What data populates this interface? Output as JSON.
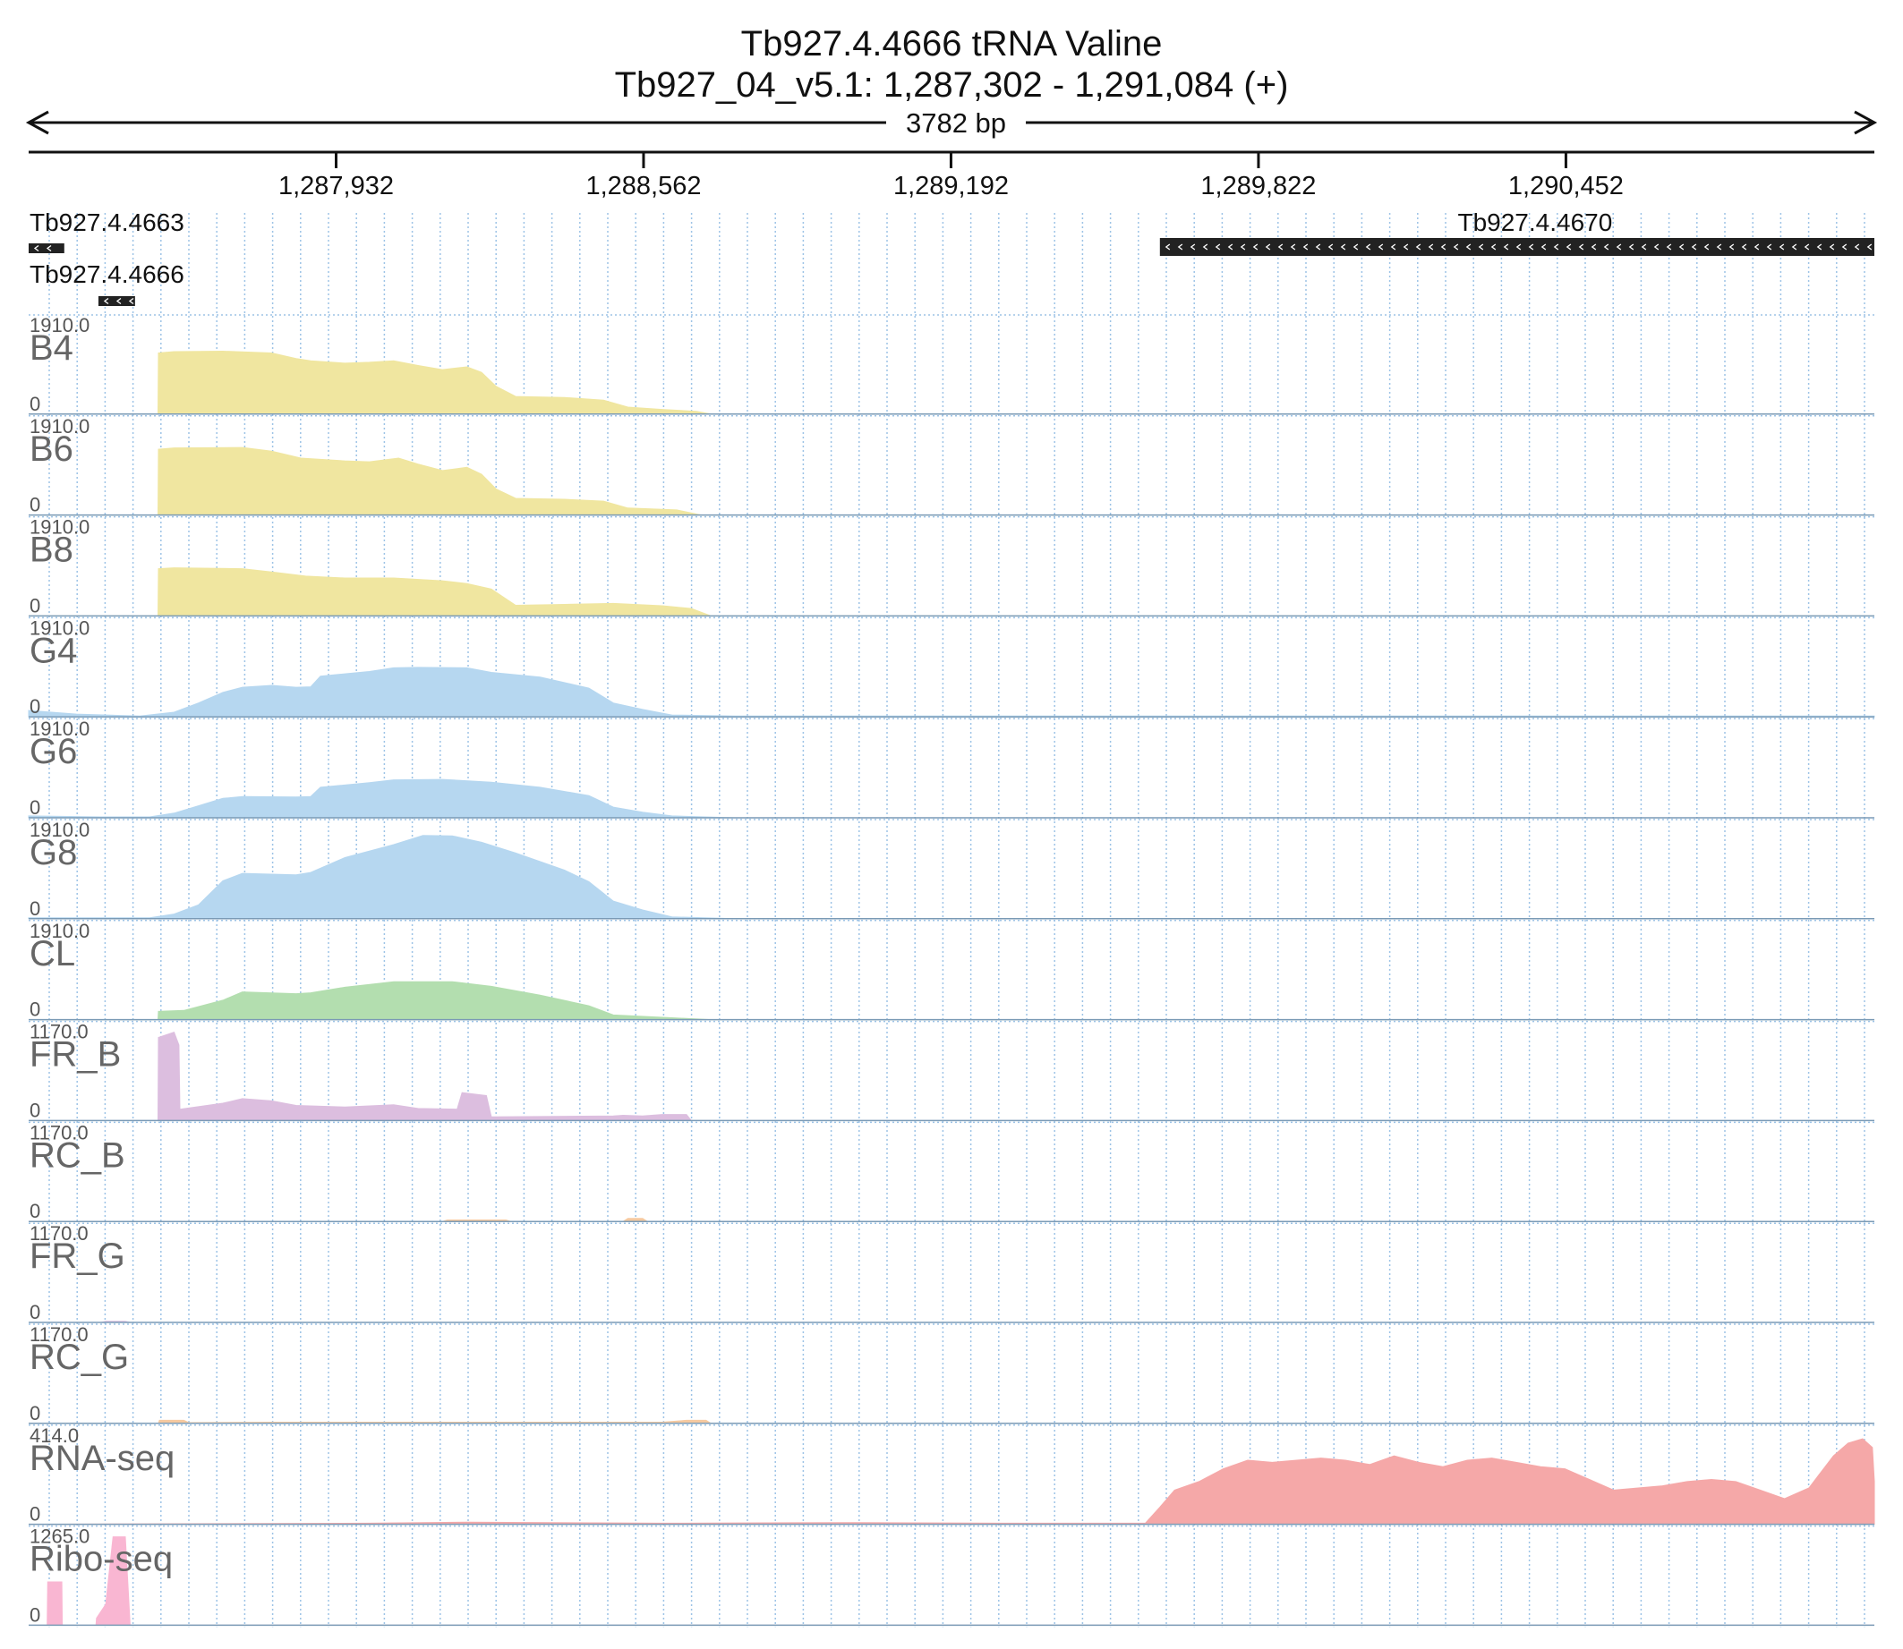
{
  "chart_data": {
    "type": "area",
    "title": "Tb927.4.4666  tRNA Valine",
    "subtitle": "Tb927_04_v5.1: 1,287,302 - 1,291,084 (+)",
    "span_label": "3782 bp",
    "xlim": [
      1287302,
      1291084
    ],
    "ticks": [
      {
        "pos": 1287932,
        "label": "1,287,932"
      },
      {
        "pos": 1288562,
        "label": "1,288,562"
      },
      {
        "pos": 1289192,
        "label": "1,289,192"
      },
      {
        "pos": 1289822,
        "label": "1,289,822"
      },
      {
        "pos": 1290452,
        "label": "1,290,452"
      }
    ],
    "genes": [
      {
        "name": "Tb927.4.4663",
        "start": 1287302,
        "end": 1287375,
        "strand": "-",
        "row": 0,
        "label_pos": "left"
      },
      {
        "name": "Tb927.4.4666",
        "start": 1287445,
        "end": 1287520,
        "strand": "-",
        "row": 1,
        "label_pos": "left"
      },
      {
        "name": "Tb927.4.4670",
        "start": 1289620,
        "end": 1291084,
        "strand": "-",
        "row": 0,
        "label_pos": "center"
      }
    ],
    "tracks": [
      {
        "name": "B4",
        "ymax": "1910.0",
        "ymin": "0",
        "ymax_value": 1910,
        "color": "#f0e6a0",
        "points": [
          [
            1287302,
            0
          ],
          [
            1287567,
            0
          ],
          [
            1287568,
            1320
          ],
          [
            1287600,
            1350
          ],
          [
            1287700,
            1360
          ],
          [
            1287800,
            1320
          ],
          [
            1287850,
            1200
          ],
          [
            1287880,
            1150
          ],
          [
            1287950,
            1100
          ],
          [
            1288000,
            1120
          ],
          [
            1288050,
            1150
          ],
          [
            1288100,
            1050
          ],
          [
            1288150,
            960
          ],
          [
            1288200,
            1020
          ],
          [
            1288230,
            900
          ],
          [
            1288260,
            600
          ],
          [
            1288300,
            380
          ],
          [
            1288400,
            360
          ],
          [
            1288480,
            300
          ],
          [
            1288530,
            150
          ],
          [
            1288600,
            100
          ],
          [
            1288670,
            60
          ],
          [
            1288700,
            0
          ],
          [
            1291084,
            0
          ]
        ]
      },
      {
        "name": "B6",
        "ymax": "1910.0",
        "ymin": "0",
        "ymax_value": 1910,
        "color": "#f0e6a0",
        "points": [
          [
            1287302,
            0
          ],
          [
            1287567,
            0
          ],
          [
            1287568,
            1420
          ],
          [
            1287600,
            1450
          ],
          [
            1287740,
            1460
          ],
          [
            1287800,
            1380
          ],
          [
            1287860,
            1230
          ],
          [
            1287950,
            1170
          ],
          [
            1288000,
            1150
          ],
          [
            1288060,
            1230
          ],
          [
            1288100,
            1100
          ],
          [
            1288150,
            960
          ],
          [
            1288200,
            1030
          ],
          [
            1288230,
            880
          ],
          [
            1288260,
            560
          ],
          [
            1288300,
            360
          ],
          [
            1288400,
            340
          ],
          [
            1288480,
            300
          ],
          [
            1288530,
            150
          ],
          [
            1288630,
            110
          ],
          [
            1288680,
            0
          ],
          [
            1291084,
            0
          ]
        ]
      },
      {
        "name": "B8",
        "ymax": "1910.0",
        "ymin": "0",
        "ymax_value": 1910,
        "color": "#f0e6a0",
        "points": [
          [
            1287302,
            0
          ],
          [
            1287567,
            0
          ],
          [
            1287568,
            1020
          ],
          [
            1287600,
            1040
          ],
          [
            1287740,
            1020
          ],
          [
            1287800,
            950
          ],
          [
            1287870,
            860
          ],
          [
            1287950,
            820
          ],
          [
            1288050,
            820
          ],
          [
            1288150,
            760
          ],
          [
            1288200,
            700
          ],
          [
            1288250,
            580
          ],
          [
            1288300,
            230
          ],
          [
            1288400,
            250
          ],
          [
            1288500,
            270
          ],
          [
            1288600,
            220
          ],
          [
            1288660,
            160
          ],
          [
            1288700,
            0
          ],
          [
            1291084,
            0
          ]
        ]
      },
      {
        "name": "G4",
        "ymax": "1910.0",
        "ymin": "0",
        "ymax_value": 1910,
        "color": "#b6d7f0",
        "points": [
          [
            1287302,
            140
          ],
          [
            1287400,
            60
          ],
          [
            1287530,
            20
          ],
          [
            1287600,
            100
          ],
          [
            1287650,
            300
          ],
          [
            1287700,
            530
          ],
          [
            1287740,
            640
          ],
          [
            1287800,
            680
          ],
          [
            1287850,
            640
          ],
          [
            1287880,
            650
          ],
          [
            1287900,
            880
          ],
          [
            1288000,
            980
          ],
          [
            1288050,
            1060
          ],
          [
            1288100,
            1070
          ],
          [
            1288200,
            1060
          ],
          [
            1288250,
            960
          ],
          [
            1288350,
            860
          ],
          [
            1288450,
            620
          ],
          [
            1288500,
            300
          ],
          [
            1288560,
            160
          ],
          [
            1288620,
            40
          ],
          [
            1288750,
            20
          ],
          [
            1291084,
            20
          ]
        ]
      },
      {
        "name": "G6",
        "ymax": "1910.0",
        "ymin": "0",
        "ymax_value": 1910,
        "color": "#b6d7f0",
        "points": [
          [
            1287302,
            40
          ],
          [
            1287450,
            20
          ],
          [
            1287550,
            20
          ],
          [
            1287600,
            100
          ],
          [
            1287650,
            260
          ],
          [
            1287700,
            420
          ],
          [
            1287740,
            460
          ],
          [
            1287850,
            450
          ],
          [
            1287880,
            460
          ],
          [
            1287900,
            660
          ],
          [
            1288000,
            760
          ],
          [
            1288050,
            820
          ],
          [
            1288150,
            830
          ],
          [
            1288250,
            770
          ],
          [
            1288350,
            660
          ],
          [
            1288450,
            480
          ],
          [
            1288500,
            230
          ],
          [
            1288560,
            120
          ],
          [
            1288620,
            40
          ],
          [
            1288750,
            0
          ],
          [
            1291084,
            0
          ]
        ]
      },
      {
        "name": "G8",
        "ymax": "1910.0",
        "ymin": "0",
        "ymax_value": 1910,
        "color": "#b6d7f0",
        "points": [
          [
            1287302,
            20
          ],
          [
            1287550,
            20
          ],
          [
            1287600,
            100
          ],
          [
            1287650,
            300
          ],
          [
            1287700,
            820
          ],
          [
            1287740,
            980
          ],
          [
            1287850,
            950
          ],
          [
            1287880,
            1000
          ],
          [
            1287950,
            1320
          ],
          [
            1288050,
            1600
          ],
          [
            1288110,
            1800
          ],
          [
            1288170,
            1790
          ],
          [
            1288230,
            1650
          ],
          [
            1288300,
            1420
          ],
          [
            1288400,
            1050
          ],
          [
            1288450,
            800
          ],
          [
            1288500,
            380
          ],
          [
            1288560,
            190
          ],
          [
            1288620,
            40
          ],
          [
            1288750,
            0
          ],
          [
            1291084,
            0
          ]
        ]
      },
      {
        "name": "CL",
        "ymax": "1910.0",
        "ymin": "0",
        "ymax_value": 1910,
        "color": "#b3deaf",
        "points": [
          [
            1287302,
            0
          ],
          [
            1287567,
            0
          ],
          [
            1287568,
            180
          ],
          [
            1287620,
            200
          ],
          [
            1287700,
            420
          ],
          [
            1287740,
            600
          ],
          [
            1287850,
            560
          ],
          [
            1287880,
            580
          ],
          [
            1287950,
            700
          ],
          [
            1288050,
            820
          ],
          [
            1288170,
            820
          ],
          [
            1288250,
            720
          ],
          [
            1288350,
            530
          ],
          [
            1288450,
            300
          ],
          [
            1288500,
            100
          ],
          [
            1288620,
            40
          ],
          [
            1288700,
            0
          ],
          [
            1291084,
            0
          ]
        ]
      },
      {
        "name": "FR_B",
        "ymax": "1170.0",
        "ymin": "0",
        "ymax_value": 1170,
        "color": "#dcbedf",
        "points": [
          [
            1287302,
            0
          ],
          [
            1287567,
            0
          ],
          [
            1287568,
            1100
          ],
          [
            1287600,
            1170
          ],
          [
            1287610,
            1000
          ],
          [
            1287612,
            150
          ],
          [
            1287700,
            230
          ],
          [
            1287740,
            290
          ],
          [
            1287800,
            260
          ],
          [
            1287850,
            200
          ],
          [
            1287950,
            180
          ],
          [
            1288050,
            210
          ],
          [
            1288100,
            160
          ],
          [
            1288180,
            150
          ],
          [
            1288190,
            370
          ],
          [
            1288240,
            330
          ],
          [
            1288250,
            50
          ],
          [
            1288500,
            60
          ],
          [
            1288520,
            70
          ],
          [
            1288560,
            60
          ],
          [
            1288600,
            80
          ],
          [
            1288650,
            80
          ],
          [
            1288660,
            0
          ],
          [
            1291084,
            0
          ]
        ]
      },
      {
        "name": "RC_B",
        "ymax": "1170.0",
        "ymin": "0",
        "ymax_value": 1170,
        "color": "#f5c9a0",
        "points": [
          [
            1287302,
            0
          ],
          [
            1288150,
            0
          ],
          [
            1288160,
            20
          ],
          [
            1288280,
            20
          ],
          [
            1288290,
            0
          ],
          [
            1288520,
            0
          ],
          [
            1288530,
            40
          ],
          [
            1288560,
            40
          ],
          [
            1288570,
            0
          ],
          [
            1291084,
            0
          ]
        ]
      },
      {
        "name": "FR_G",
        "ymax": "1170.0",
        "ymin": "0",
        "ymax_value": 1170,
        "color": "#dcbedf",
        "points": [
          [
            1287302,
            0
          ],
          [
            1287450,
            0
          ],
          [
            1287460,
            15
          ],
          [
            1287500,
            15
          ],
          [
            1287510,
            0
          ],
          [
            1291084,
            0
          ]
        ]
      },
      {
        "name": "RC_G",
        "ymax": "1170.0",
        "ymin": "0",
        "ymax_value": 1170,
        "color": "#f5c9a0",
        "points": [
          [
            1287302,
            0
          ],
          [
            1287568,
            0
          ],
          [
            1287570,
            40
          ],
          [
            1287620,
            40
          ],
          [
            1287630,
            10
          ],
          [
            1287800,
            15
          ],
          [
            1288600,
            15
          ],
          [
            1288650,
            40
          ],
          [
            1288690,
            40
          ],
          [
            1288700,
            0
          ],
          [
            1291084,
            0
          ]
        ]
      },
      {
        "name": "RNA-seq",
        "ymax": "414.0",
        "ymin": "0",
        "ymax_value": 414,
        "color": "#f5a8a8",
        "points": [
          [
            1287302,
            0
          ],
          [
            1288000,
            5
          ],
          [
            1288200,
            10
          ],
          [
            1288600,
            5
          ],
          [
            1289000,
            8
          ],
          [
            1289300,
            5
          ],
          [
            1289590,
            5
          ],
          [
            1289620,
            80
          ],
          [
            1289650,
            160
          ],
          [
            1289700,
            200
          ],
          [
            1289750,
            260
          ],
          [
            1289800,
            300
          ],
          [
            1289850,
            290
          ],
          [
            1289900,
            300
          ],
          [
            1289950,
            310
          ],
          [
            1290000,
            300
          ],
          [
            1290050,
            280
          ],
          [
            1290100,
            320
          ],
          [
            1290150,
            290
          ],
          [
            1290200,
            270
          ],
          [
            1290250,
            300
          ],
          [
            1290300,
            310
          ],
          [
            1290350,
            290
          ],
          [
            1290400,
            270
          ],
          [
            1290450,
            260
          ],
          [
            1290500,
            210
          ],
          [
            1290550,
            160
          ],
          [
            1290600,
            170
          ],
          [
            1290650,
            180
          ],
          [
            1290700,
            200
          ],
          [
            1290750,
            210
          ],
          [
            1290800,
            200
          ],
          [
            1290850,
            160
          ],
          [
            1290900,
            120
          ],
          [
            1290950,
            170
          ],
          [
            1291000,
            320
          ],
          [
            1291030,
            380
          ],
          [
            1291060,
            400
          ],
          [
            1291080,
            360
          ],
          [
            1291084,
            200
          ]
        ]
      },
      {
        "name": "Ribo-seq",
        "ymax": "1265.0",
        "ymin": "0",
        "ymax_value": 1265,
        "color": "#f9b6d2",
        "points": [
          [
            1287302,
            0
          ],
          [
            1287340,
            0
          ],
          [
            1287341,
            620
          ],
          [
            1287370,
            620
          ],
          [
            1287371,
            0
          ],
          [
            1287440,
            0
          ],
          [
            1287441,
            100
          ],
          [
            1287460,
            300
          ],
          [
            1287475,
            1265
          ],
          [
            1287500,
            1265
          ],
          [
            1287510,
            0
          ],
          [
            1291084,
            0
          ]
        ]
      }
    ]
  }
}
